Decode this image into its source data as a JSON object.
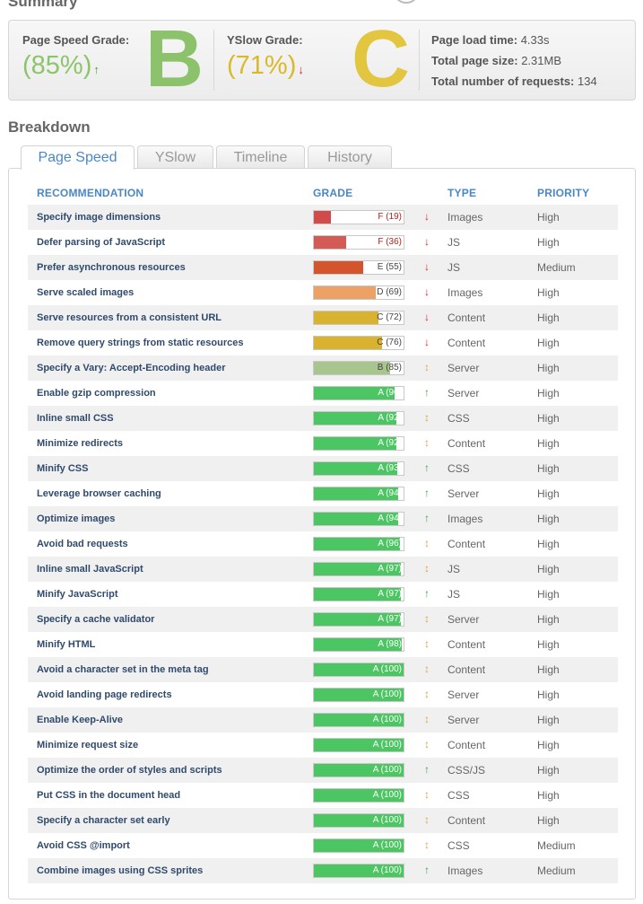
{
  "summary": {
    "heading": "Summary",
    "pagespeed": {
      "label": "Page Speed Grade:",
      "percent": "(85%)",
      "arrow": "↑",
      "letter": "B"
    },
    "yslow": {
      "label": "YSlow Grade:",
      "percent": "(71%)",
      "arrow": "↓",
      "letter": "C"
    },
    "stats": [
      {
        "label": "Page load time:",
        "value": "4.33s"
      },
      {
        "label": "Total page size:",
        "value": "2.31MB"
      },
      {
        "label": "Total number of requests:",
        "value": "134"
      }
    ]
  },
  "breakdown": {
    "heading": "Breakdown",
    "tabs": [
      "Page Speed",
      "YSlow",
      "Timeline",
      "History"
    ],
    "active_tab": "Page Speed",
    "columns": {
      "recommendation": "RECOMMENDATION",
      "grade": "GRADE",
      "type": "TYPE",
      "priority": "PRIORITY"
    },
    "rows": [
      {
        "rec": "Specify image dimensions",
        "grade": "F (19)",
        "score": 19,
        "trend": "down",
        "type": "Images",
        "priority": "High"
      },
      {
        "rec": "Defer parsing of JavaScript",
        "grade": "F (36)",
        "score": 36,
        "trend": "down",
        "type": "JS",
        "priority": "High"
      },
      {
        "rec": "Prefer asynchronous resources",
        "grade": "E (55)",
        "score": 55,
        "trend": "down",
        "type": "JS",
        "priority": "Medium"
      },
      {
        "rec": "Serve scaled images",
        "grade": "D (69)",
        "score": 69,
        "trend": "down",
        "type": "Images",
        "priority": "High"
      },
      {
        "rec": "Serve resources from a consistent URL",
        "grade": "C (72)",
        "score": 72,
        "trend": "down",
        "type": "Content",
        "priority": "High"
      },
      {
        "rec": "Remove query strings from static resources",
        "grade": "C (76)",
        "score": 76,
        "trend": "down",
        "type": "Content",
        "priority": "High"
      },
      {
        "rec": "Specify a Vary: Accept-Encoding header",
        "grade": "B (85)",
        "score": 85,
        "trend": "same",
        "type": "Server",
        "priority": "High"
      },
      {
        "rec": "Enable gzip compression",
        "grade": "A (90)",
        "score": 90,
        "trend": "up",
        "type": "Server",
        "priority": "High"
      },
      {
        "rec": "Inline small CSS",
        "grade": "A (92)",
        "score": 92,
        "trend": "same",
        "type": "CSS",
        "priority": "High"
      },
      {
        "rec": "Minimize redirects",
        "grade": "A (92)",
        "score": 92,
        "trend": "same",
        "type": "Content",
        "priority": "High"
      },
      {
        "rec": "Minify CSS",
        "grade": "A (93)",
        "score": 93,
        "trend": "up",
        "type": "CSS",
        "priority": "High"
      },
      {
        "rec": "Leverage browser caching",
        "grade": "A (94)",
        "score": 94,
        "trend": "up",
        "type": "Server",
        "priority": "High"
      },
      {
        "rec": "Optimize images",
        "grade": "A (94)",
        "score": 94,
        "trend": "up",
        "type": "Images",
        "priority": "High"
      },
      {
        "rec": "Avoid bad requests",
        "grade": "A (96)",
        "score": 96,
        "trend": "same",
        "type": "Content",
        "priority": "High"
      },
      {
        "rec": "Inline small JavaScript",
        "grade": "A (97)",
        "score": 97,
        "trend": "same",
        "type": "JS",
        "priority": "High"
      },
      {
        "rec": "Minify JavaScript",
        "grade": "A (97)",
        "score": 97,
        "trend": "up",
        "type": "JS",
        "priority": "High"
      },
      {
        "rec": "Specify a cache validator",
        "grade": "A (97)",
        "score": 97,
        "trend": "same",
        "type": "Server",
        "priority": "High"
      },
      {
        "rec": "Minify HTML",
        "grade": "A (98)",
        "score": 98,
        "trend": "same",
        "type": "Content",
        "priority": "High"
      },
      {
        "rec": "Avoid a character set in the meta tag",
        "grade": "A (100)",
        "score": 100,
        "trend": "same",
        "type": "Content",
        "priority": "High"
      },
      {
        "rec": "Avoid landing page redirects",
        "grade": "A (100)",
        "score": 100,
        "trend": "same",
        "type": "Server",
        "priority": "High"
      },
      {
        "rec": "Enable Keep-Alive",
        "grade": "A (100)",
        "score": 100,
        "trend": "same",
        "type": "Server",
        "priority": "High"
      },
      {
        "rec": "Minimize request size",
        "grade": "A (100)",
        "score": 100,
        "trend": "same",
        "type": "Content",
        "priority": "High"
      },
      {
        "rec": "Optimize the order of styles and scripts",
        "grade": "A (100)",
        "score": 100,
        "trend": "up",
        "type": "CSS/JS",
        "priority": "High"
      },
      {
        "rec": "Put CSS in the document head",
        "grade": "A (100)",
        "score": 100,
        "trend": "same",
        "type": "CSS",
        "priority": "High"
      },
      {
        "rec": "Specify a character set early",
        "grade": "A (100)",
        "score": 100,
        "trend": "same",
        "type": "Content",
        "priority": "High"
      },
      {
        "rec": "Avoid CSS @import",
        "grade": "A (100)",
        "score": 100,
        "trend": "same",
        "type": "CSS",
        "priority": "Medium"
      },
      {
        "rec": "Combine images using CSS sprites",
        "grade": "A (100)",
        "score": 100,
        "trend": "up",
        "type": "Images",
        "priority": "Medium"
      }
    ]
  },
  "colors": {
    "pagespeed_green": "#8cc56a",
    "yslow_yellow": "#d9b92a",
    "header_blue": "#4a87c5",
    "trend_up": "#3fa63f",
    "trend_down": "#d22",
    "trend_same": "#e3a23a"
  }
}
